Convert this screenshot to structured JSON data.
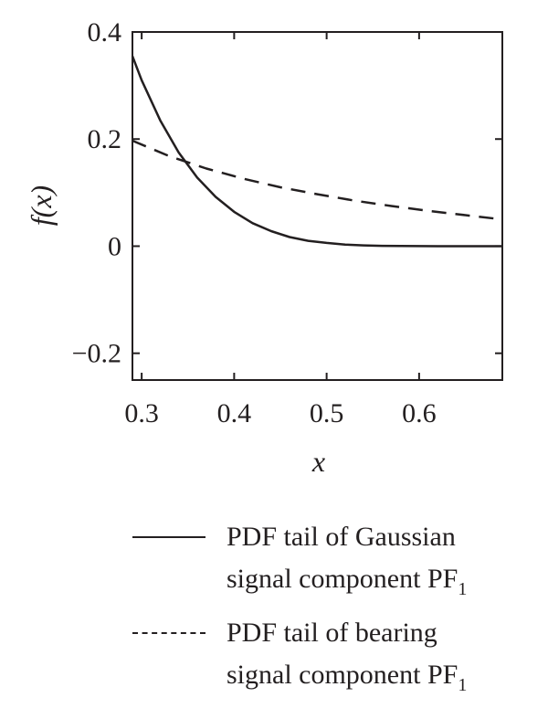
{
  "chart_data": {
    "type": "line",
    "xlabel": "x",
    "ylabel": "f(x)",
    "xlim": [
      0.29,
      0.69
    ],
    "ylim": [
      -0.25,
      0.4
    ],
    "xticks": [
      "0.3",
      "0.4",
      "0.5",
      "0.6"
    ],
    "yticks": [
      "0.4",
      "0.2",
      "0",
      "−0.2"
    ],
    "series": [
      {
        "name": "PDF tail of Gaussian signal component PF1",
        "style": "solid",
        "x": [
          0.29,
          0.3,
          0.32,
          0.34,
          0.36,
          0.38,
          0.4,
          0.42,
          0.44,
          0.46,
          0.48,
          0.5,
          0.52,
          0.54,
          0.56,
          0.58,
          0.6,
          0.62,
          0.64,
          0.66,
          0.69
        ],
        "y": [
          0.355,
          0.31,
          0.235,
          0.175,
          0.128,
          0.092,
          0.064,
          0.043,
          0.028,
          0.017,
          0.01,
          0.006,
          0.003,
          0.0015,
          0.0007,
          0.0003,
          0.0001,
          0.0,
          0.0,
          0.0,
          0.0
        ]
      },
      {
        "name": "PDF tail of bearing signal component PF1",
        "style": "dashed",
        "x": [
          0.29,
          0.33,
          0.37,
          0.41,
          0.45,
          0.49,
          0.53,
          0.57,
          0.61,
          0.65,
          0.69
        ],
        "y": [
          0.197,
          0.168,
          0.145,
          0.126,
          0.11,
          0.097,
          0.085,
          0.075,
          0.066,
          0.058,
          0.05
        ]
      }
    ]
  },
  "legend": {
    "entries": [
      {
        "line1": "PDF tail of Gaussian",
        "line2": "signal component PF",
        "sub": "1"
      },
      {
        "line1": "PDF tail of bearing",
        "line2": "signal component PF",
        "sub": "1"
      }
    ]
  }
}
